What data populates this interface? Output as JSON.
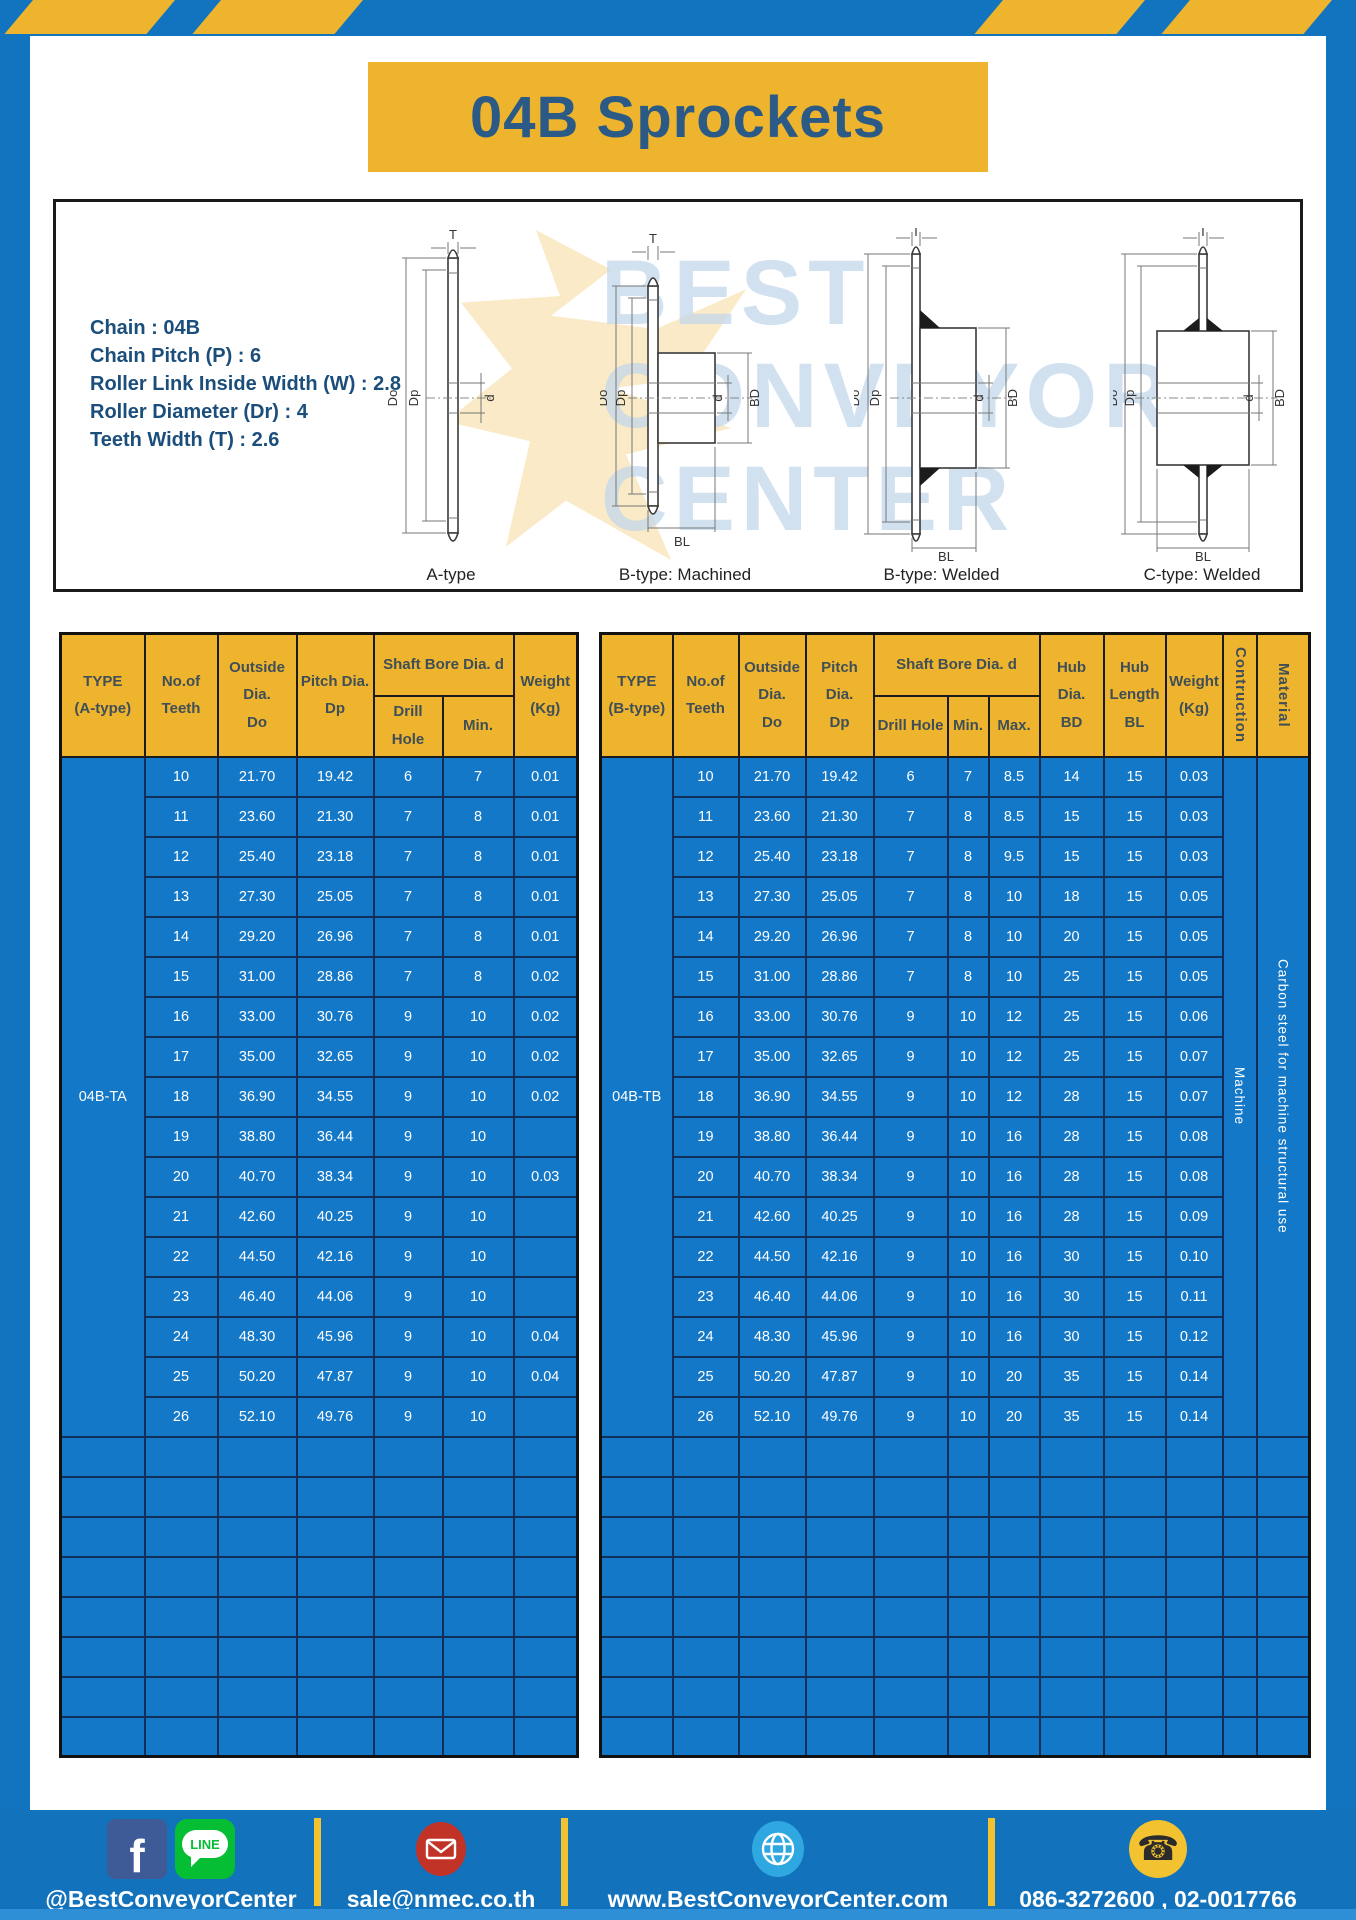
{
  "header": {
    "title": "04B Sprockets"
  },
  "specs": [
    "Chain : 04B",
    "Chain Pitch (P) : 6",
    "Roller Link Inside Width (W) : 2.8",
    "Roller Diameter (Dr) : 4",
    "Teeth Width (T) : 2.6"
  ],
  "diagram": {
    "captions": [
      "A-type",
      "B-type: Machined",
      "B-type: Welded",
      "C-type: Welded"
    ],
    "dims": {
      "T": "T",
      "Do": "Do",
      "Dp": "Dp",
      "d": "d",
      "BD": "BD",
      "BL": "BL"
    },
    "watermark_lines": [
      "BEST",
      "CONVEYOR",
      "CENTER"
    ]
  },
  "table_a": {
    "headers": {
      "type": "TYPE\n(A-type)",
      "teeth": "No.of\nTeeth",
      "outside": "Outside\nDia.\nDo",
      "pitch": "Pitch Dia.\nDp",
      "shaft": "Shaft Bore Dia. d",
      "drill": "Drill Hole",
      "min": "Min.",
      "weight": "Weight\n(Kg)"
    },
    "type_label": "04B-TA",
    "rows": [
      [
        "10",
        "21.70",
        "19.42",
        "6",
        "7",
        "0.01"
      ],
      [
        "11",
        "23.60",
        "21.30",
        "7",
        "8",
        "0.01"
      ],
      [
        "12",
        "25.40",
        "23.18",
        "7",
        "8",
        "0.01"
      ],
      [
        "13",
        "27.30",
        "25.05",
        "7",
        "8",
        "0.01"
      ],
      [
        "14",
        "29.20",
        "26.96",
        "7",
        "8",
        "0.01"
      ],
      [
        "15",
        "31.00",
        "28.86",
        "7",
        "8",
        "0.02"
      ],
      [
        "16",
        "33.00",
        "30.76",
        "9",
        "10",
        "0.02"
      ],
      [
        "17",
        "35.00",
        "32.65",
        "9",
        "10",
        "0.02"
      ],
      [
        "18",
        "36.90",
        "34.55",
        "9",
        "10",
        "0.02"
      ],
      [
        "19",
        "38.80",
        "36.44",
        "9",
        "10",
        ""
      ],
      [
        "20",
        "40.70",
        "38.34",
        "9",
        "10",
        "0.03"
      ],
      [
        "21",
        "42.60",
        "40.25",
        "9",
        "10",
        ""
      ],
      [
        "22",
        "44.50",
        "42.16",
        "9",
        "10",
        ""
      ],
      [
        "23",
        "46.40",
        "44.06",
        "9",
        "10",
        ""
      ],
      [
        "24",
        "48.30",
        "45.96",
        "9",
        "10",
        "0.04"
      ],
      [
        "25",
        "50.20",
        "47.87",
        "9",
        "10",
        "0.04"
      ],
      [
        "26",
        "52.10",
        "49.76",
        "9",
        "10",
        ""
      ]
    ],
    "empty_rows": 8
  },
  "table_b": {
    "headers": {
      "type": "TYPE\n(B-type)",
      "teeth": "No.of\nTeeth",
      "outside": "Outside\nDia.\nDo",
      "pitch": "Pitch Dia.\nDp",
      "shaft": "Shaft Bore Dia. d",
      "drill": "Drill Hole",
      "min": "Min.",
      "max": "Max.",
      "hub_dia": "Hub Dia.\nBD",
      "hub_len": "Hub\nLength\nBL",
      "weight": "Weight\n(Kg)",
      "construction": "Contruction",
      "material": "Material"
    },
    "type_label": "04B-TB",
    "construction": "Machine",
    "material": "Carbon steel for machine structural use",
    "rows": [
      [
        "10",
        "21.70",
        "19.42",
        "6",
        "7",
        "8.5",
        "14",
        "15",
        "0.03"
      ],
      [
        "11",
        "23.60",
        "21.30",
        "7",
        "8",
        "8.5",
        "15",
        "15",
        "0.03"
      ],
      [
        "12",
        "25.40",
        "23.18",
        "7",
        "8",
        "9.5",
        "15",
        "15",
        "0.03"
      ],
      [
        "13",
        "27.30",
        "25.05",
        "7",
        "8",
        "10",
        "18",
        "15",
        "0.05"
      ],
      [
        "14",
        "29.20",
        "26.96",
        "7",
        "8",
        "10",
        "20",
        "15",
        "0.05"
      ],
      [
        "15",
        "31.00",
        "28.86",
        "7",
        "8",
        "10",
        "25",
        "15",
        "0.05"
      ],
      [
        "16",
        "33.00",
        "30.76",
        "9",
        "10",
        "12",
        "25",
        "15",
        "0.06"
      ],
      [
        "17",
        "35.00",
        "32.65",
        "9",
        "10",
        "12",
        "25",
        "15",
        "0.07"
      ],
      [
        "18",
        "36.90",
        "34.55",
        "9",
        "10",
        "12",
        "28",
        "15",
        "0.07"
      ],
      [
        "19",
        "38.80",
        "36.44",
        "9",
        "10",
        "16",
        "28",
        "15",
        "0.08"
      ],
      [
        "20",
        "40.70",
        "38.34",
        "9",
        "10",
        "16",
        "28",
        "15",
        "0.08"
      ],
      [
        "21",
        "42.60",
        "40.25",
        "9",
        "10",
        "16",
        "28",
        "15",
        "0.09"
      ],
      [
        "22",
        "44.50",
        "42.16",
        "9",
        "10",
        "16",
        "30",
        "15",
        "0.10"
      ],
      [
        "23",
        "46.40",
        "44.06",
        "9",
        "10",
        "16",
        "30",
        "15",
        "0.11"
      ],
      [
        "24",
        "48.30",
        "45.96",
        "9",
        "10",
        "16",
        "30",
        "15",
        "0.12"
      ],
      [
        "25",
        "50.20",
        "47.87",
        "9",
        "10",
        "20",
        "35",
        "15",
        "0.14"
      ],
      [
        "26",
        "52.10",
        "49.76",
        "9",
        "10",
        "20",
        "35",
        "15",
        "0.14"
      ]
    ],
    "empty_rows": 8
  },
  "footer": {
    "facebook_label": "f",
    "line_label": "LINE",
    "social_label": "@BestConveyorCenter",
    "email": "sale@nmec.co.th",
    "website": "www.BestConveyorCenter.com",
    "phones": "086-3272600 , 02-0017766"
  },
  "colors": {
    "frame_blue": "#1274BE",
    "cell_blue": "#1478C8",
    "cell_border_navy": "#103059",
    "accent_yellow": "#EEB42D",
    "title_text": "#2B5A87",
    "header_text": "#3F4E57"
  }
}
